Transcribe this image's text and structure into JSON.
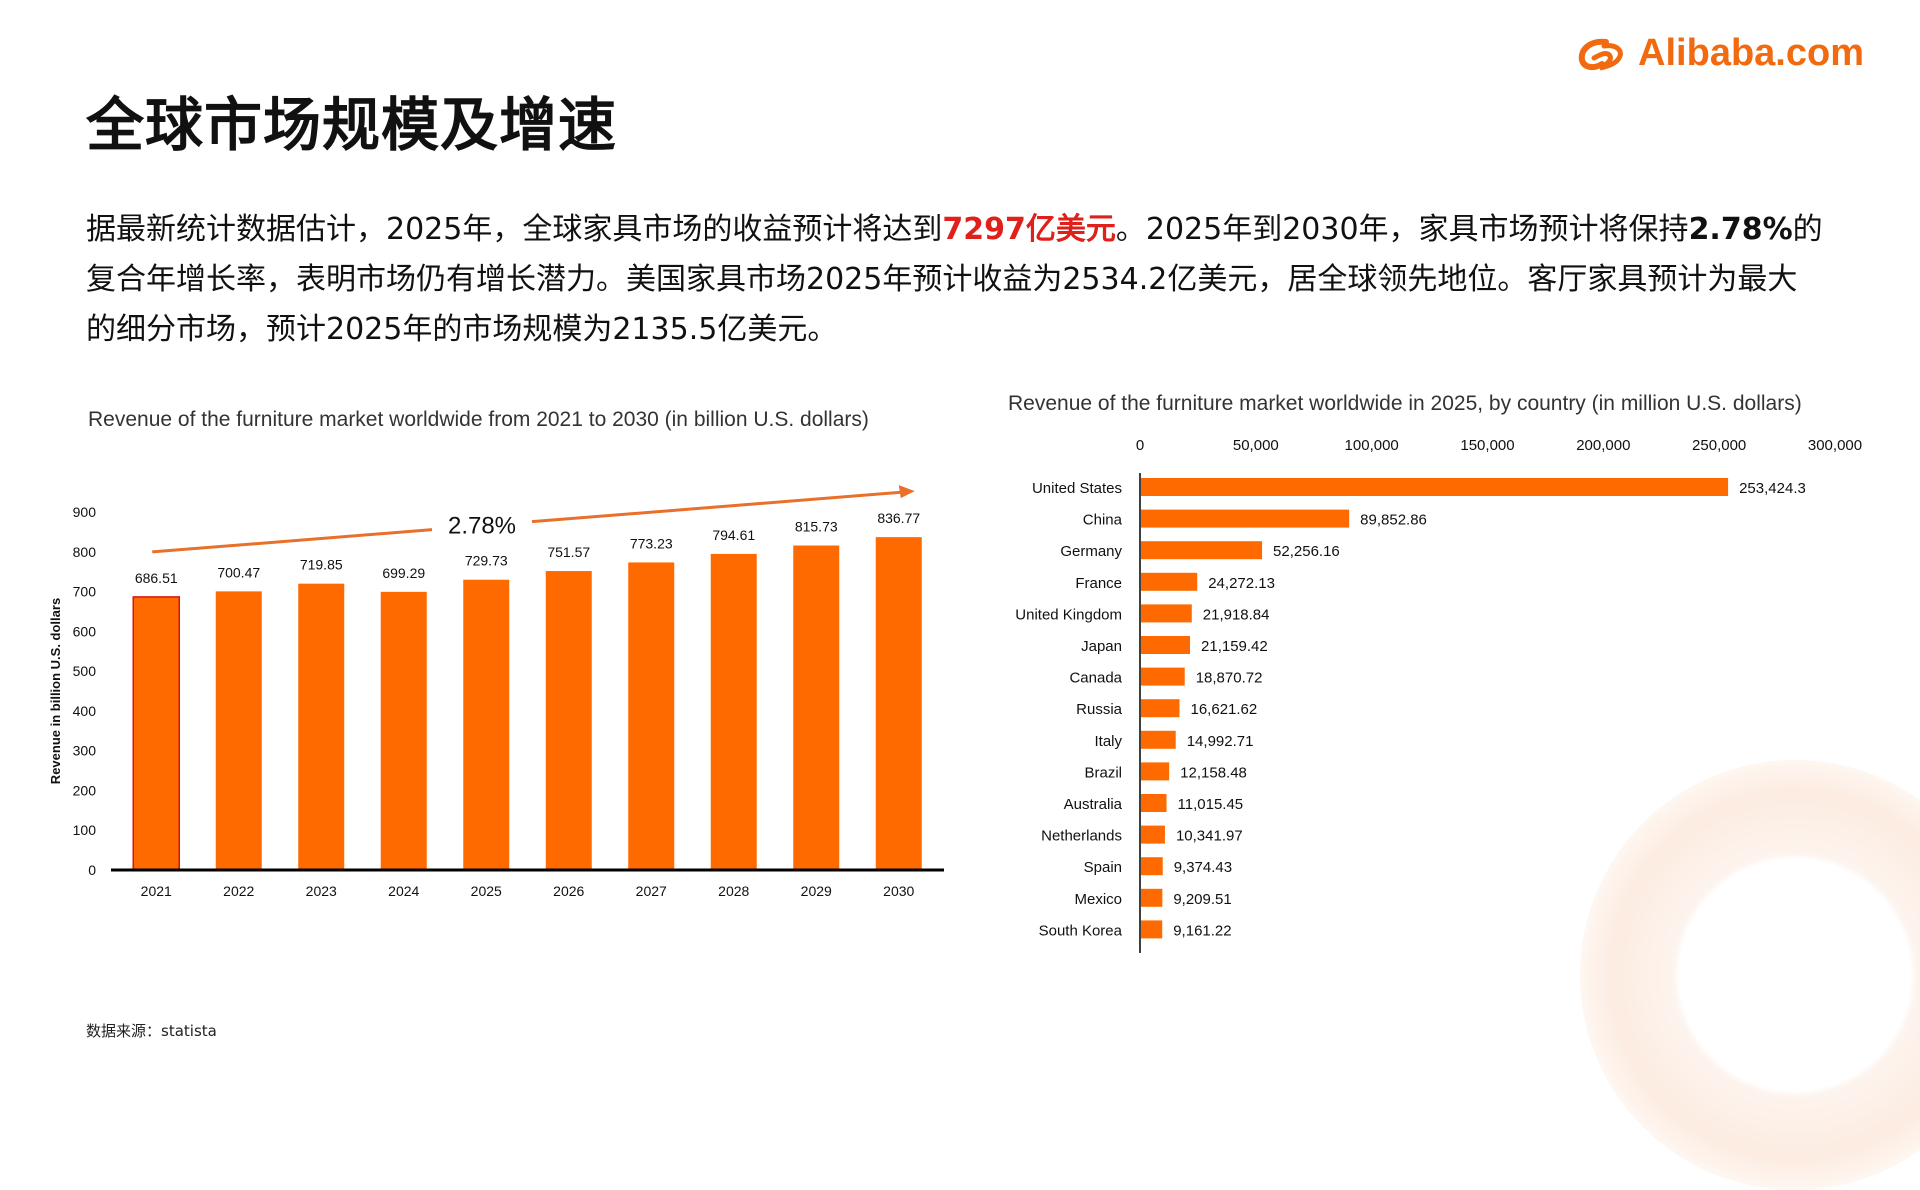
{
  "logo": {
    "text": "Alibaba.com",
    "icon": "alibaba-logo-icon",
    "color": "#f26a10"
  },
  "title": "全球市场规模及增速",
  "summary": {
    "part1": "据最新统计数据估计，2025年，全球家具市场的收益预计将达到",
    "highlight": "7297亿美元",
    "part2": "。2025年到2030年，家具市场预计将保持",
    "bold": "2.78%",
    "part3": "的复合年增长率，表明市场仍有增长潜力。美国家具市场2025年预计收益为2534.2亿美元，居全球领先地位。客厅家具预计为最大的细分市场，预计2025年的市场规模为2135.5亿美元。"
  },
  "source": "数据来源：statista",
  "colors": {
    "bar": "#ff6a00",
    "highlight": "#e0201b",
    "trend": "#e8702a",
    "axis": "#000000"
  },
  "chart_data": [
    {
      "type": "bar",
      "title": "Revenue of the furniture market worldwide from 2021 to 2030 (in billion U.S. dollars)",
      "xlabel": "",
      "ylabel": "Revenue in billion U.S. dollars",
      "categories": [
        "2021",
        "2022",
        "2023",
        "2024",
        "2025",
        "2026",
        "2027",
        "2028",
        "2029",
        "2030"
      ],
      "values": [
        686.51,
        700.47,
        719.85,
        699.29,
        729.73,
        751.57,
        773.23,
        794.61,
        815.73,
        836.77
      ],
      "labels": [
        "686.51",
        "700.47",
        "719.85",
        "699.29",
        "729.73",
        "751.57",
        "773.23",
        "794.61",
        "815.73",
        "836.77"
      ],
      "yticks": [
        0,
        100,
        200,
        300,
        400,
        500,
        600,
        700,
        800,
        900
      ],
      "ylim": [
        0,
        900
      ],
      "annotation": "2.78%",
      "grid": false
    },
    {
      "type": "bar",
      "orientation": "horizontal",
      "title": "Revenue of the furniture market worldwide in 2025, by country (in million U.S. dollars)",
      "categories": [
        "United States",
        "China",
        "Germany",
        "France",
        "United Kingdom",
        "Japan",
        "Canada",
        "Russia",
        "Italy",
        "Brazil",
        "Australia",
        "Netherlands",
        "Spain",
        "Mexico",
        "South Korea"
      ],
      "values": [
        253424.3,
        89852.86,
        52256.16,
        24272.13,
        21918.84,
        21159.42,
        18870.72,
        16621.62,
        14992.71,
        12158.48,
        11015.45,
        10341.97,
        9374.43,
        9209.51,
        9161.22
      ],
      "labels": [
        "253,424.3",
        "89,852.86",
        "52,256.16",
        "24,272.13",
        "21,918.84",
        "21,159.42",
        "18,870.72",
        "16,621.62",
        "14,992.71",
        "12,158.48",
        "11,015.45",
        "10,341.97",
        "9,374.43",
        "9,209.51",
        "9,161.22"
      ],
      "xticks": [
        0,
        50000,
        100000,
        150000,
        200000,
        250000,
        300000
      ],
      "xtick_labels": [
        "0",
        "50,000",
        "100,000",
        "150,000",
        "200,000",
        "250,000",
        "300,000"
      ],
      "xlim": [
        0,
        300000
      ],
      "grid": false
    }
  ]
}
